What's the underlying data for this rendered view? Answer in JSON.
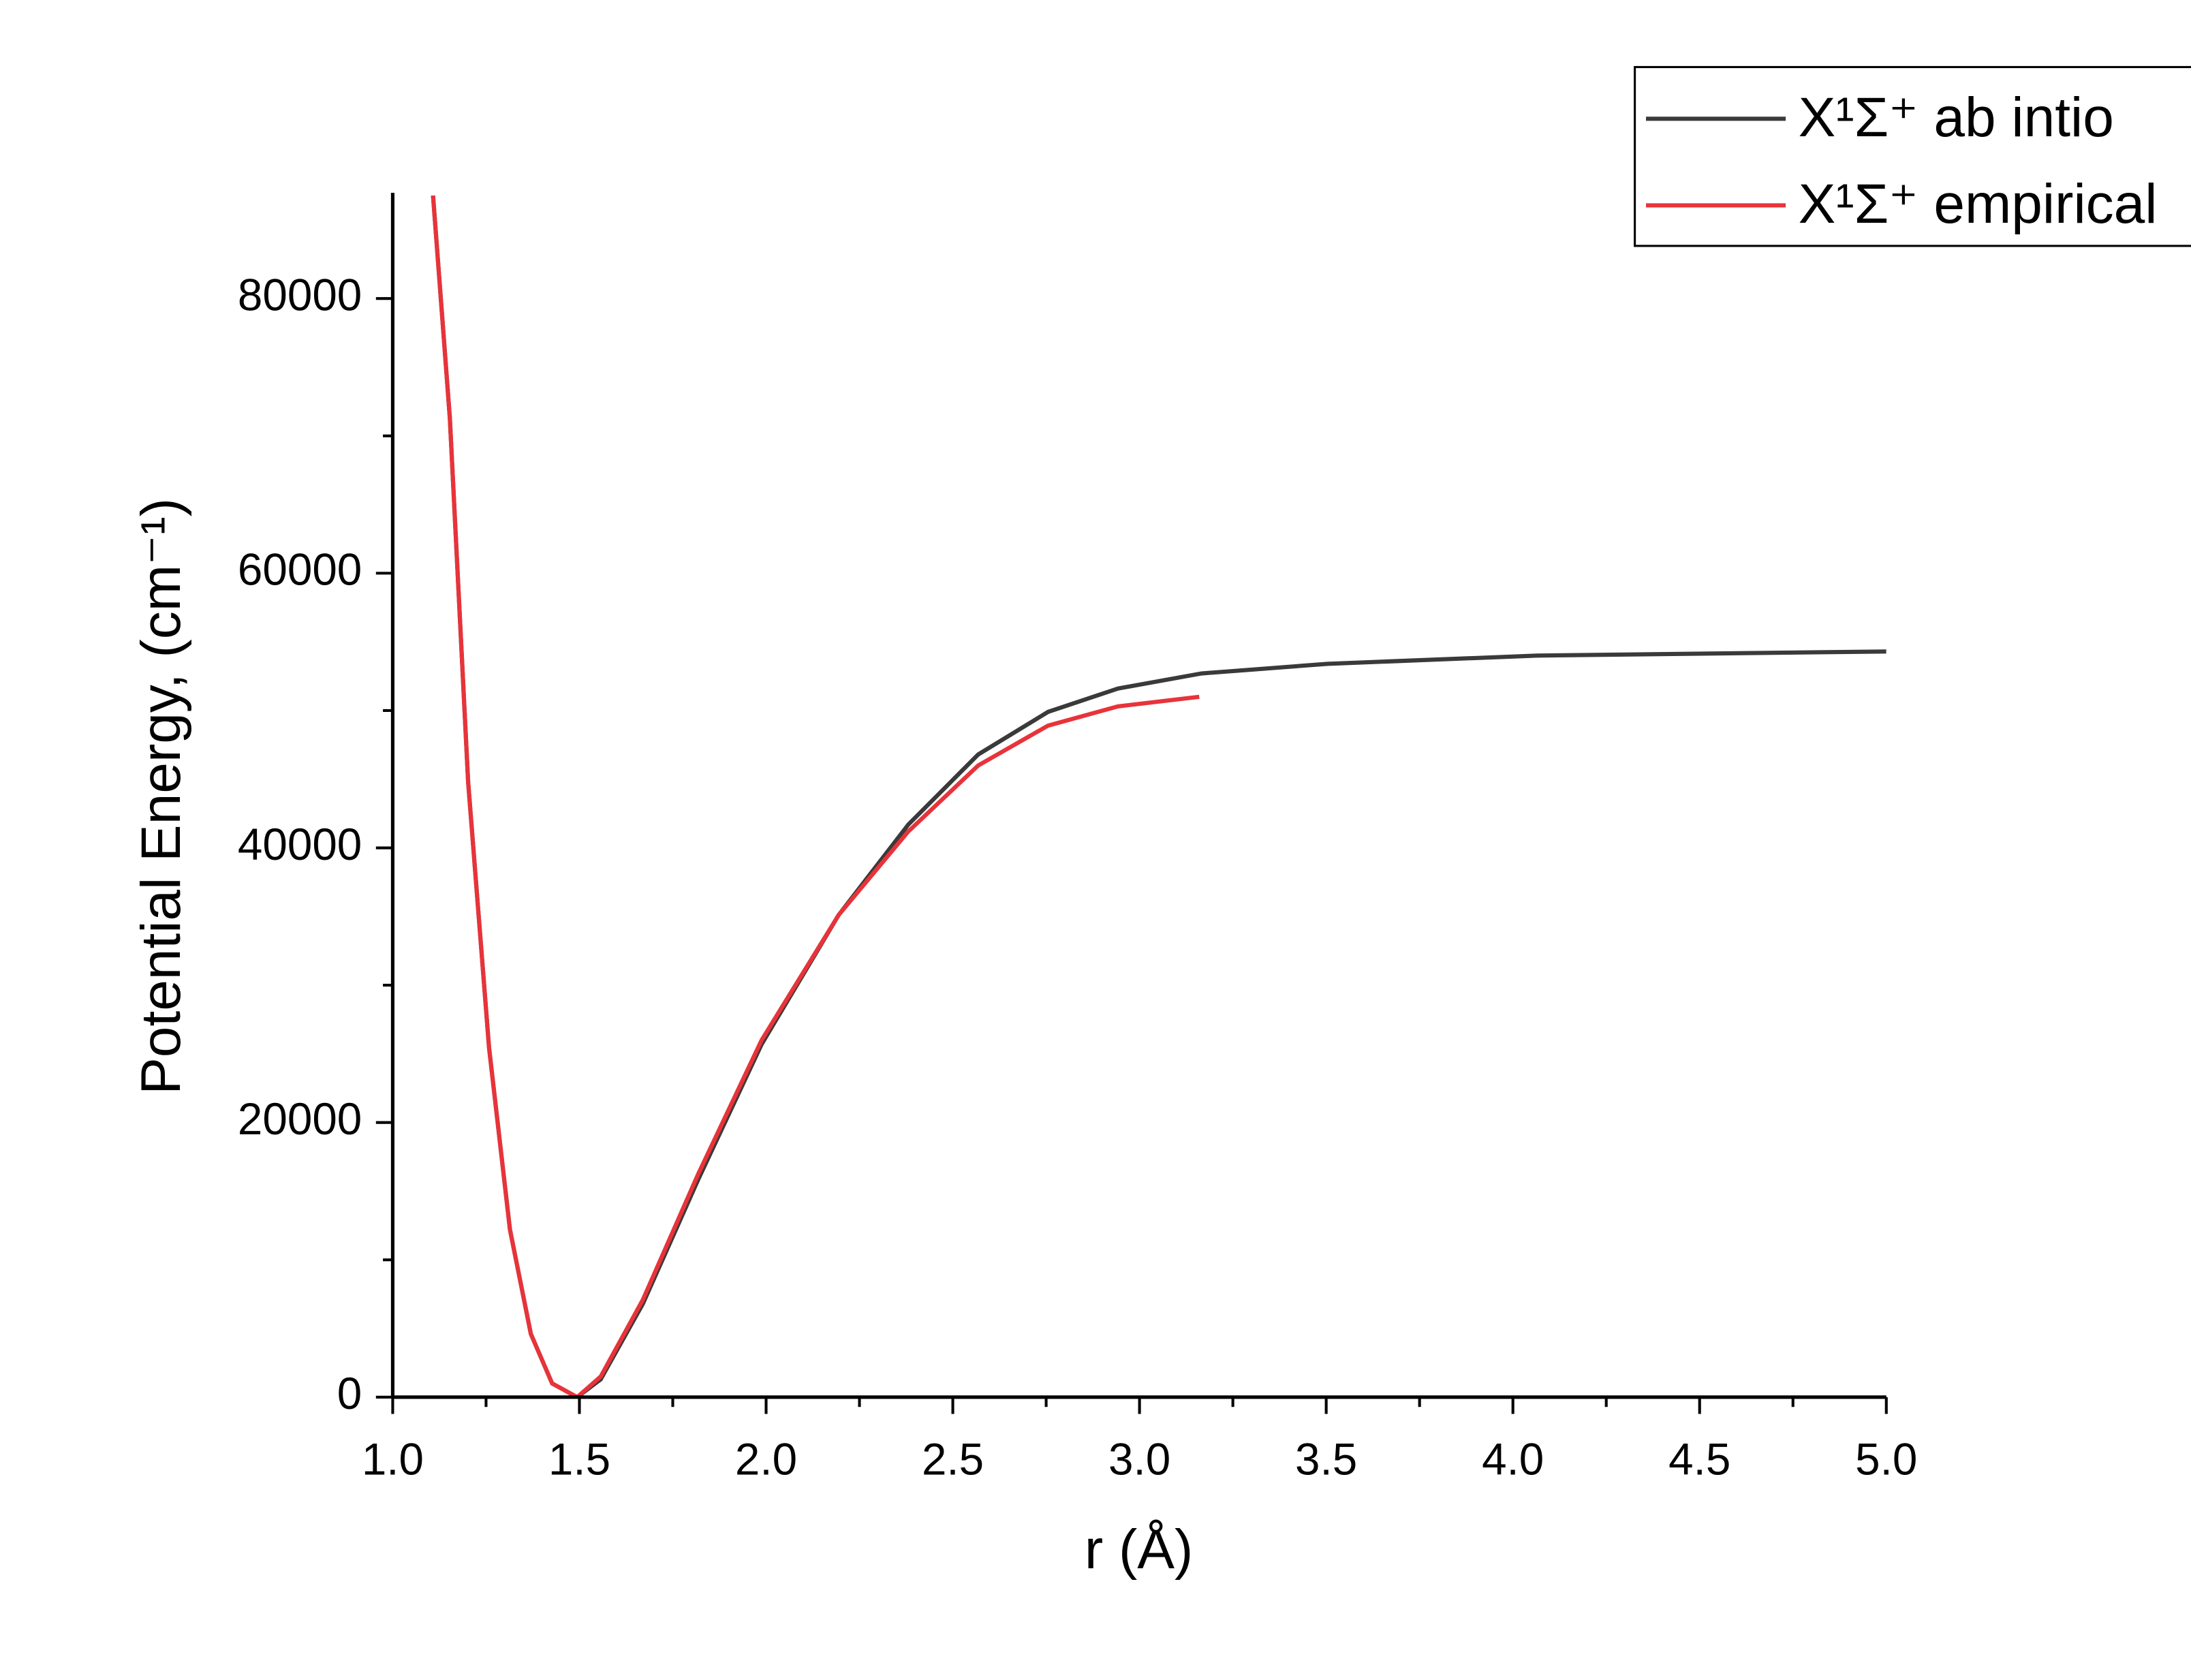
{
  "chart_data": {
    "type": "line",
    "x_label": "r (Å)",
    "y_label": "Potential Energy, (cm⁻¹)",
    "xlim": [
      1.0,
      5.0
    ],
    "ylim": [
      0,
      87700
    ],
    "xticks": [
      {
        "value": 1.0,
        "label": "1.0"
      },
      1.5,
      {
        "value": 2.0,
        "label": "2.0"
      },
      2.5,
      {
        "value": 3.0,
        "label": "3.0"
      },
      3.5,
      {
        "value": 4.0,
        "label": "4.0"
      },
      4.5,
      {
        "value": 5.0,
        "label": "5.0"
      }
    ],
    "yticks": [
      0,
      20000,
      40000,
      60000,
      80000
    ],
    "legend_position": "upper right",
    "series": [
      {
        "name": "X¹Σ⁺ ab intio",
        "color": "#3a3a3a",
        "x": [
          1.108,
          1.153,
          1.202,
          1.258,
          1.314,
          1.37,
          1.427,
          1.494,
          1.557,
          1.67,
          1.819,
          1.988,
          2.194,
          2.381,
          2.568,
          2.755,
          2.942,
          3.166,
          3.503,
          4.065,
          5.0
        ],
        "values": [
          87500,
          71300,
          44800,
          25450,
          12200,
          4600,
          1000,
          0,
          1300,
          6800,
          15900,
          25700,
          35100,
          41700,
          46800,
          49900,
          51600,
          52700,
          53400,
          54000,
          54300
        ]
      },
      {
        "name": "X¹Σ⁺ empirical",
        "color": "#e8333a",
        "x": [
          1.108,
          1.153,
          1.202,
          1.258,
          1.314,
          1.37,
          1.427,
          1.494,
          1.557,
          1.67,
          1.819,
          1.988,
          2.194,
          2.381,
          2.568,
          2.755,
          2.942,
          3.16
        ],
        "values": [
          87500,
          71300,
          44800,
          25450,
          12200,
          4600,
          1000,
          0,
          1500,
          7100,
          16300,
          26000,
          35100,
          41200,
          46000,
          48900,
          50300,
          51000
        ]
      }
    ]
  }
}
